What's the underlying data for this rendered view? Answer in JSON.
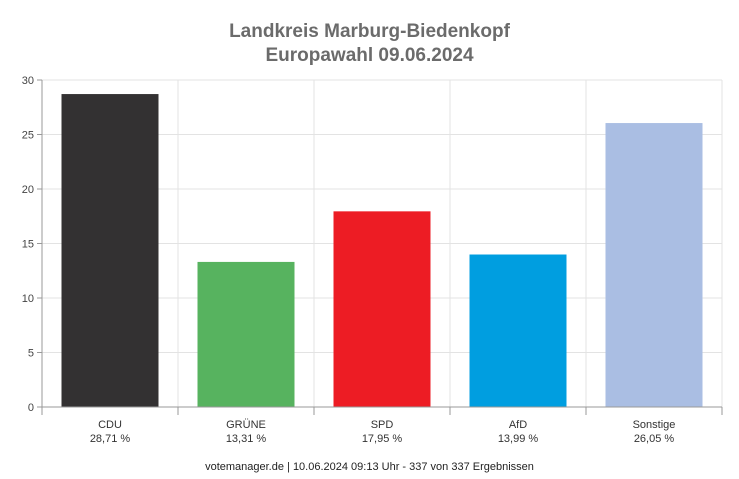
{
  "chart_data": {
    "type": "bar",
    "title_line1": "Landkreis Marburg-Biedenkopf",
    "title_line2": "Europawahl 09.06.2024",
    "categories": [
      "CDU",
      "GRÜNE",
      "SPD",
      "AfD",
      "Sonstige"
    ],
    "values": [
      28.71,
      13.31,
      17.95,
      13.99,
      26.05
    ],
    "value_labels": [
      "28,71 %",
      "13,31 %",
      "17,95 %",
      "13,99 %",
      "26,05 %"
    ],
    "colors": [
      "#333132",
      "#57b35f",
      "#ed1c24",
      "#009ee0",
      "#aabee3"
    ],
    "ylim": [
      0,
      30
    ],
    "yticks": [
      0,
      5,
      10,
      15,
      20,
      25,
      30
    ],
    "grid": true,
    "xlabel": "",
    "ylabel": ""
  },
  "footer": "votemanager.de | 10.06.2024 09:13 Uhr - 337 von 337 Ergebnissen"
}
